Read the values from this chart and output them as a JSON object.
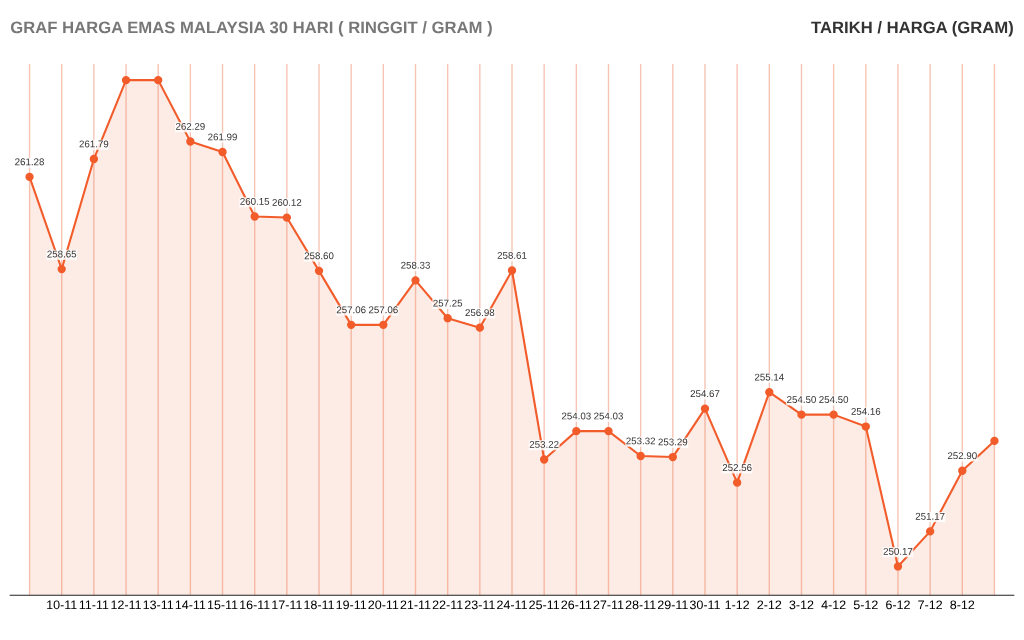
{
  "chart_data": {
    "type": "area",
    "title": "GRAF HARGA EMAS MALAYSIA 30 HARI ( RINGGIT / GRAM )",
    "annotations": [
      "TARIKH / HARGA (GRAM)"
    ],
    "categories": [
      null,
      "10-11",
      "11-11",
      "12-11",
      "13-11",
      "14-11",
      "15-11",
      "16-11",
      "17-11",
      "18-11",
      "19-11",
      "20-11",
      "21-11",
      "22-11",
      "23-11",
      "24-11",
      "25-11",
      "26-11",
      "27-11",
      "28-11",
      "29-11",
      "30-11",
      "1-12",
      "2-12",
      "3-12",
      "4-12",
      "5-12",
      "6-12",
      "7-12",
      "8-12",
      null
    ],
    "series": [
      {
        "color": "#f25c2a",
        "values": [
          261.28,
          258.65,
          261.79,
          264.04,
          264.04,
          262.29,
          261.99,
          260.15,
          260.12,
          258.6,
          257.06,
          257.06,
          258.33,
          257.25,
          256.98,
          258.61,
          253.22,
          254.03,
          254.03,
          253.32,
          253.29,
          254.67,
          252.56,
          255.14,
          254.5,
          254.5,
          254.16,
          250.17,
          251.17,
          252.9,
          253.75
        ],
        "value_labels": [
          "261.28",
          "258.65",
          "261.79",
          null,
          null,
          "262.29",
          "261.99",
          "260.15",
          "260.12",
          "258.60",
          "257.06",
          "257.06",
          "258.33",
          "257.25",
          "256.98",
          "258.61",
          "253.22",
          "254.03",
          "254.03",
          "253.32",
          "253.29",
          "254.67",
          "252.56",
          "255.14",
          "254.50",
          "254.50",
          "254.16",
          "250.17",
          "251.17",
          "252.90",
          null
        ]
      }
    ],
    "ylim": [
      249.35,
      264.5
    ],
    "grid": "x",
    "marker": "circle",
    "line_style": "solid",
    "tick_labels": "x"
  }
}
